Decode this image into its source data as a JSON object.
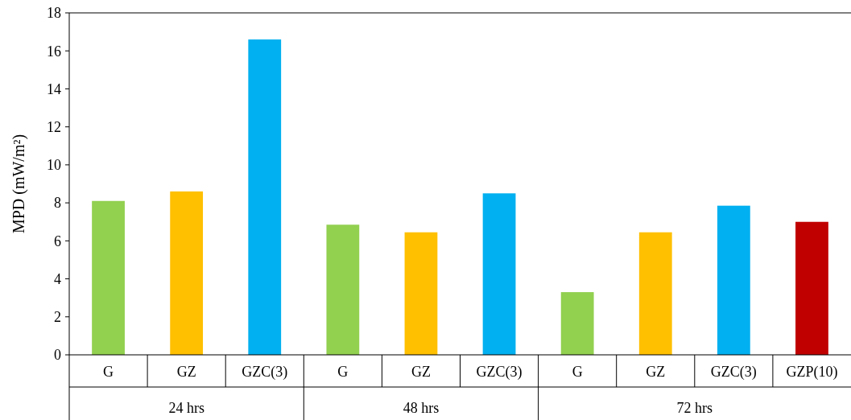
{
  "chart_data": {
    "type": "bar",
    "ylabel": "MPD (mW/m²)",
    "categories": [
      "G",
      "GZ",
      "GZC(3)",
      "G",
      "GZ",
      "GZC(3)",
      "G",
      "GZ",
      "GZC(3)",
      "GZP(10)"
    ],
    "values": [
      8.1,
      8.6,
      16.6,
      6.85,
      6.45,
      8.5,
      3.3,
      6.45,
      7.85,
      7.0
    ],
    "colors": [
      "#92d050",
      "#ffc000",
      "#00b0f0",
      "#92d050",
      "#ffc000",
      "#00b0f0",
      "#92d050",
      "#ffc000",
      "#00b0f0",
      "#c00000"
    ],
    "ylim": [
      0,
      18
    ],
    "yticks": [
      0,
      2,
      4,
      6,
      8,
      10,
      12,
      14,
      16,
      18
    ],
    "grid": false,
    "annotations": [
      "24 hrs",
      "48 hrs",
      "72 hrs"
    ]
  }
}
